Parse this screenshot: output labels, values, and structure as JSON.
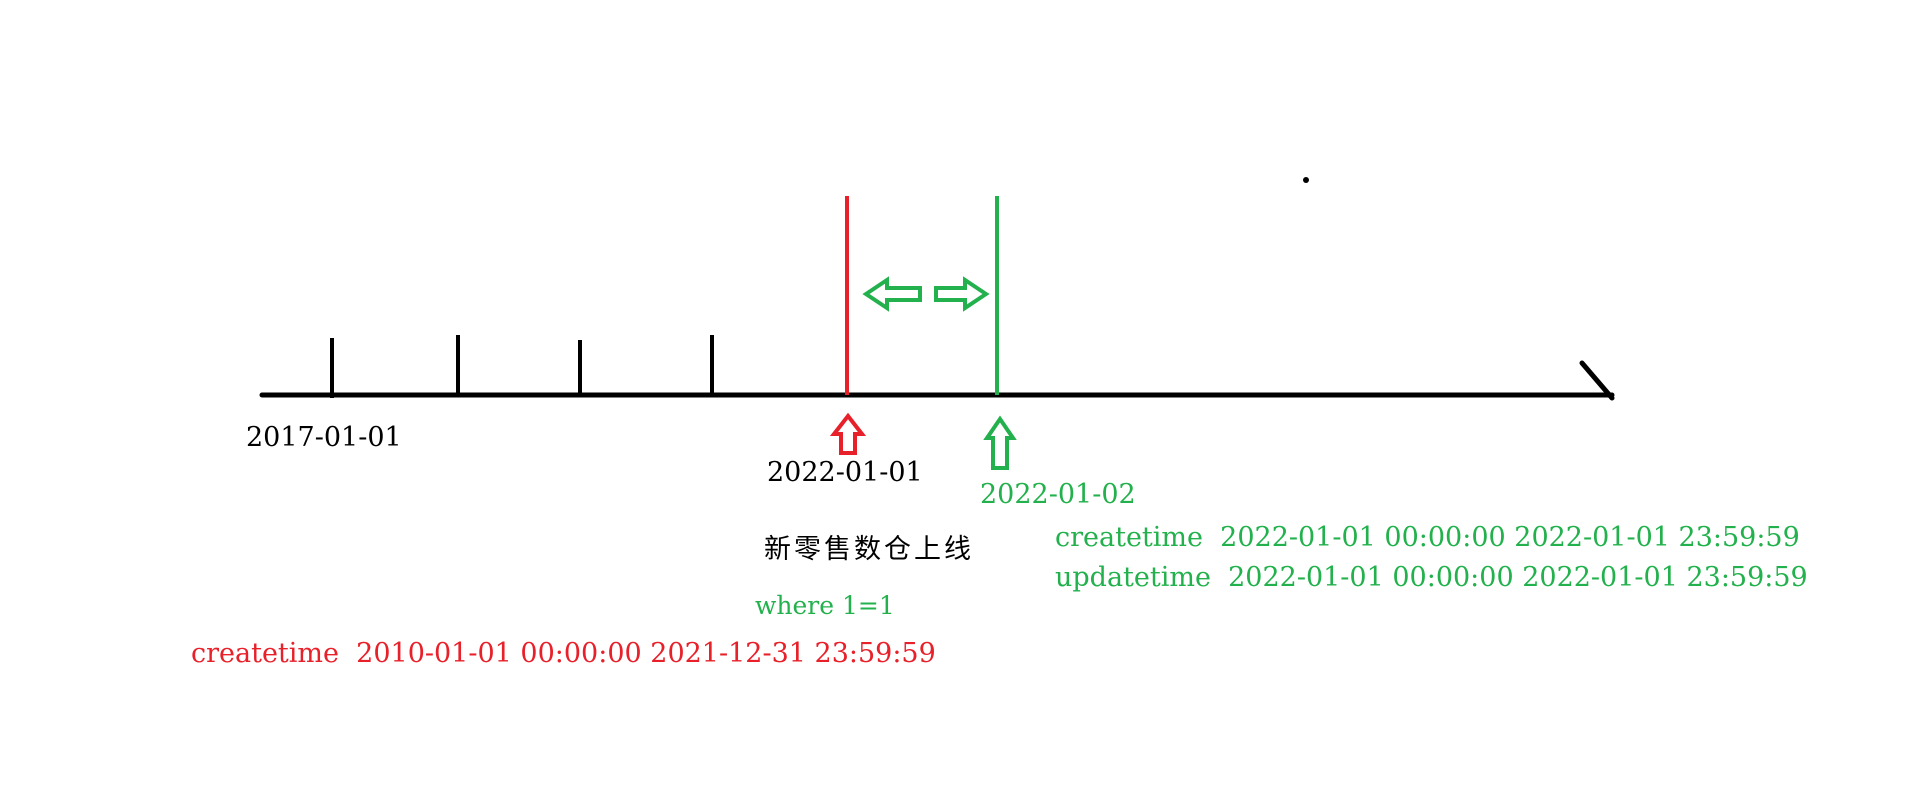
{
  "colors": {
    "axis": "#000000",
    "red": "#e8202a",
    "green": "#22b14c"
  },
  "labels": {
    "start_date": "2017-01-01",
    "red_date": "2022-01-01",
    "green_date": "2022-01-02",
    "launch_note": "新零售数仓上线",
    "where_clause": "where 1=1",
    "red_query": "createtime  2010-01-01 00:00:00 2021-12-31 23:59:59",
    "green_createtime": "createtime  2022-01-01 00:00:00 2022-01-01 23:59:59",
    "green_updatetime": "updatetime  2022-01-01 00:00:00 2022-01-01 23:59:59"
  }
}
